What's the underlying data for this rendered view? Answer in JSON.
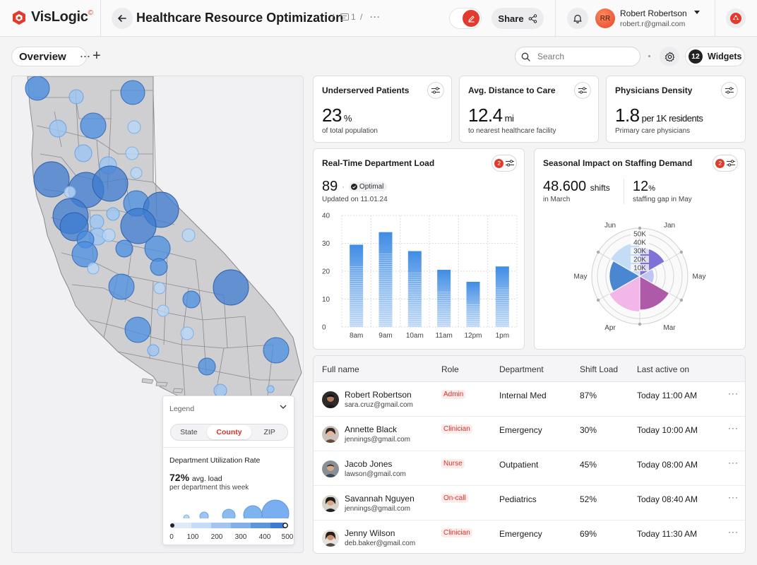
{
  "app": {
    "logo_name": "VisLogic",
    "logo_sup": "©"
  },
  "header": {
    "title": "Healthcare Resource Optimization",
    "crumb_count": "1",
    "crumb_sep": "/",
    "crumb_more": "···",
    "share_label": "Share",
    "user": {
      "initials": "RR",
      "name": "Robert Robertson",
      "email": "robert.r@gmail.com"
    }
  },
  "toolbar": {
    "tab_label": "Overview",
    "tab_more": "···",
    "add_label": "+",
    "search_placeholder": "Search",
    "widgets_count": "12",
    "widgets_label": "Widgets"
  },
  "colors": {
    "accent": "#e23b2e",
    "bubble": "#4a8de0",
    "bar": "#3f8ce4"
  },
  "kpis": [
    {
      "title": "Underserved Patients",
      "value": "23",
      "unit": "%",
      "sub": "of total population"
    },
    {
      "title": "Avg. Distance to Care",
      "value": "12.4",
      "unit": "mi",
      "sub": "to nearest healthcare facility"
    },
    {
      "title": "Physicians Density",
      "value": "1.8",
      "unit": "per 1K residents",
      "sub": "Primary care physicians"
    }
  ],
  "load": {
    "title": "Real-Time Department Load",
    "badge": "2",
    "value": "89",
    "dot": "·",
    "status": "Optimal",
    "updated": "Updated on 11.01.24"
  },
  "season": {
    "title": "Seasonal Impact on Staffing Demand",
    "badge": "2",
    "shifts_value": "48.600",
    "shifts_unit": "shifts",
    "shifts_sub": "in March",
    "gap_value": "12",
    "gap_unit": "%",
    "gap_sub": "staffing gap in May"
  },
  "chart_data": [
    {
      "type": "bar",
      "categories": [
        "8am",
        "9am",
        "10am",
        "11am",
        "12pm",
        "1pm"
      ],
      "values": [
        29.5,
        34,
        27.2,
        20.5,
        16.2,
        21.7
      ],
      "yticks": [
        0,
        10,
        20,
        30,
        40
      ],
      "ylim": [
        0,
        40
      ],
      "grid": true
    },
    {
      "type": "polar-area",
      "categories": [
        "Jan",
        "May",
        "Mar",
        "Apr",
        "May",
        "Jun"
      ],
      "values": [
        34,
        17,
        40,
        42,
        36,
        40
      ],
      "colors": [
        "#7f72d6",
        "#c1c5f3",
        "#ae5aa9",
        "#f2b6e8",
        "#4b86d1",
        "#c5dcf6"
      ],
      "rticks": [
        "10K",
        "20K",
        "30K",
        "40K",
        "50K"
      ],
      "rmax": 50
    }
  ],
  "legend": {
    "heading": "Legend",
    "tabs": [
      "State",
      "County",
      "ZIP"
    ],
    "active_tab": "County",
    "title": "Department Utilization Rate",
    "value": "72%",
    "value_unit": "avg. load",
    "sub": "per department this week",
    "ticks": [
      "0",
      "100",
      "200",
      "300",
      "400",
      "500"
    ]
  },
  "table": {
    "columns": [
      "Full name",
      "Role",
      "Department",
      "Shift Load",
      "Last active on"
    ],
    "more": "···",
    "rows": [
      {
        "name": "Robert Robertson",
        "email": "sara.cruz@gmail.com",
        "role": "Admin",
        "dept": "Internal Med",
        "load": "87%",
        "last": "Today 11:00 AM"
      },
      {
        "name": "Annette Black",
        "email": "jennings@gmail.com",
        "role": "Clinician",
        "dept": "Emergency",
        "load": "30%",
        "last": "Today 10:00 AM"
      },
      {
        "name": "Jacob Jones",
        "email": "lawson@gmail.com",
        "role": "Nurse",
        "dept": "Outpatient",
        "load": "45%",
        "last": "Today 08:00 AM"
      },
      {
        "name": "Savannah Nguyen",
        "email": "jennings@gmail.com",
        "role": "On-call",
        "dept": "Pediatrics",
        "load": "52%",
        "last": "Today 08:40 AM"
      },
      {
        "name": "Jenny Wilson",
        "email": "deb.baker@gmail.com",
        "role": "Clinician",
        "dept": "Emergency",
        "load": "69%",
        "last": "Today 11:30 AM"
      }
    ]
  }
}
